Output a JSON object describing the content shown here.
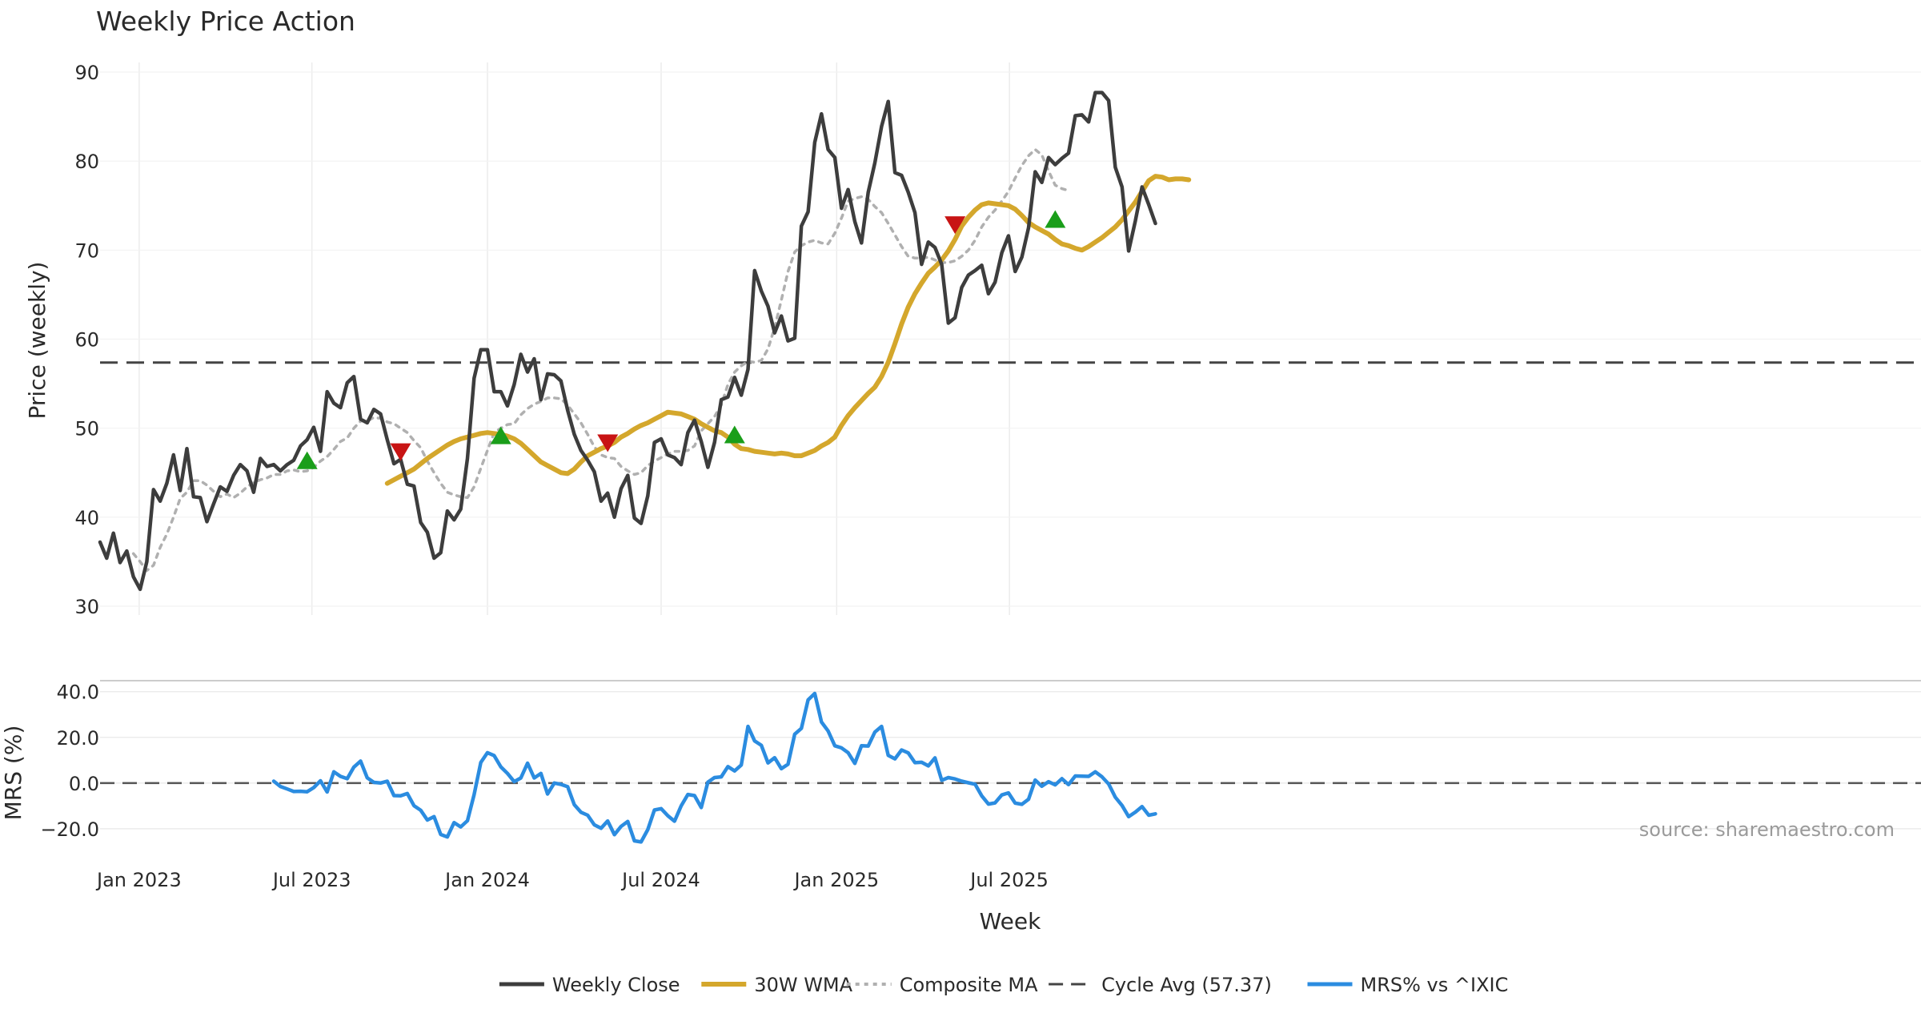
{
  "chart_data": {
    "type": "line",
    "title": "Weekly Price Action",
    "source_note": "source: sharemaestro.com",
    "xlabel": "Week",
    "x_start": "2022-11-21",
    "x_step_days": 7,
    "x_ticks": [
      {
        "date": "2023-01-01",
        "label": "Jan 2023"
      },
      {
        "date": "2023-07-01",
        "label": "Jul 2023"
      },
      {
        "date": "2024-01-01",
        "label": "Jan 2024"
      },
      {
        "date": "2024-07-01",
        "label": "Jul 2024"
      },
      {
        "date": "2025-01-01",
        "label": "Jan 2025"
      },
      {
        "date": "2025-07-01",
        "label": "Jul 2025"
      }
    ],
    "price_panel": {
      "ylabel": "Price (weekly)",
      "ylim": [
        30,
        90
      ],
      "yticks": [
        30,
        40,
        50,
        60,
        70,
        80,
        90
      ],
      "cycle_avg": 57.37,
      "series": [
        {
          "name": "Weekly Close",
          "color": "#3d3d3d",
          "start_index": 0,
          "values": [
            37.2,
            35.4,
            38.2,
            34.9,
            36.2,
            33.3,
            31.9,
            35.0,
            43.1,
            41.8,
            43.8,
            47.0,
            43.0,
            47.7,
            42.3,
            42.2,
            39.5,
            41.5,
            43.4,
            42.9,
            44.7,
            45.9,
            45.2,
            42.8,
            46.6,
            45.7,
            45.9,
            45.2,
            45.9,
            46.4,
            48.0,
            48.7,
            50.1,
            47.4,
            54.1,
            52.8,
            52.3,
            55.1,
            55.8,
            51.0,
            50.6,
            52.1,
            51.6,
            48.7,
            46.0,
            46.5,
            43.7,
            43.5,
            39.4,
            38.3,
            35.4,
            36.0,
            40.7,
            39.7,
            40.9,
            46.6,
            55.6,
            58.8,
            58.8,
            54.1,
            54.1,
            52.5,
            54.9,
            58.3,
            56.3,
            57.8,
            53.2,
            56.1,
            56.0,
            55.3,
            52.0,
            49.3,
            47.5,
            46.4,
            45.1,
            41.8,
            42.7,
            40.0,
            43.2,
            44.7,
            39.9,
            39.3,
            42.4,
            48.4,
            48.8,
            47.0,
            46.7,
            45.9,
            49.5,
            50.9,
            48.5,
            45.6,
            48.4,
            53.2,
            53.5,
            55.7,
            53.7,
            56.6,
            67.7,
            65.4,
            63.7,
            60.7,
            62.6,
            59.8,
            60.1,
            72.7,
            74.3,
            82.1,
            85.3,
            81.3,
            80.4,
            74.7,
            76.8,
            73.2,
            70.8,
            76.5,
            79.8,
            83.9,
            86.7,
            78.7,
            78.4,
            76.5,
            74.2,
            68.4,
            70.9,
            70.3,
            68.4,
            61.8,
            62.4,
            65.8,
            67.2,
            67.7,
            68.3,
            65.1,
            66.4,
            69.7,
            71.6,
            67.6,
            69.2,
            72.5,
            78.8,
            77.6,
            80.4,
            79.6,
            80.3,
            80.9,
            85.1,
            85.2,
            84.4,
            87.7,
            87.7,
            86.8,
            79.3,
            77.1,
            69.9,
            73.3,
            77.1,
            75.1,
            73.0
          ]
        },
        {
          "name": "30W WMA",
          "color": "#d4a72c",
          "start_index": 43,
          "values": [
            43.8,
            44.2,
            44.6,
            45.0,
            45.4,
            46.0,
            46.6,
            47.1,
            47.6,
            48.1,
            48.5,
            48.8,
            49.0,
            49.2,
            49.4,
            49.5,
            49.4,
            49.3,
            49.1,
            48.8,
            48.3,
            47.6,
            46.9,
            46.2,
            45.8,
            45.4,
            45.0,
            44.9,
            45.4,
            46.2,
            46.9,
            47.3,
            47.7,
            48.0,
            48.4,
            49.0,
            49.4,
            49.9,
            50.3,
            50.6,
            51.0,
            51.4,
            51.8,
            51.7,
            51.6,
            51.3,
            51.0,
            50.5,
            50.1,
            49.7,
            49.5,
            49.0,
            48.2,
            47.7,
            47.6,
            47.4,
            47.3,
            47.2,
            47.1,
            47.2,
            47.1,
            46.9,
            46.9,
            47.2,
            47.5,
            48.0,
            48.4,
            49.0,
            50.3,
            51.4,
            52.3,
            53.1,
            53.9,
            54.6,
            55.8,
            57.4,
            59.5,
            61.7,
            63.6,
            65.1,
            66.3,
            67.4,
            68.1,
            68.9,
            69.9,
            71.2,
            72.7,
            73.7,
            74.5,
            75.1,
            75.3,
            75.2,
            75.1,
            75.0,
            74.6,
            73.9,
            73.1,
            72.6,
            72.2,
            71.8,
            71.2,
            70.7,
            70.5,
            70.2,
            70.0,
            70.4,
            70.9,
            71.4,
            72.0,
            72.6,
            73.4,
            74.4,
            75.4,
            76.6,
            77.8,
            78.3,
            78.2,
            77.9,
            78.0,
            78.0,
            77.9
          ]
        },
        {
          "name": "Composite MA",
          "color": "#b0b0b0",
          "start_index": 5,
          "values": [
            35.9,
            35.0,
            34.0,
            34.6,
            36.6,
            38.1,
            40.0,
            42.1,
            42.8,
            44.1,
            44.1,
            43.6,
            42.9,
            42.3,
            42.6,
            42.2,
            42.7,
            43.4,
            43.9,
            44.2,
            44.4,
            44.8,
            44.8,
            45.2,
            45.3,
            45.1,
            45.2,
            45.6,
            46.3,
            46.8,
            47.6,
            48.5,
            48.9,
            50.0,
            50.8,
            50.8,
            51.2,
            51.1,
            50.7,
            50.5,
            50.0,
            49.5,
            48.6,
            47.8,
            46.3,
            45.0,
            43.8,
            42.8,
            42.5,
            42.3,
            42.2,
            43.4,
            45.5,
            47.5,
            49.5,
            50.0,
            50.4,
            50.5,
            51.5,
            52.2,
            52.7,
            53.0,
            53.4,
            53.4,
            53.3,
            52.6,
            51.6,
            50.6,
            49.3,
            47.9,
            47.0,
            46.7,
            46.6,
            45.7,
            45.2,
            44.8,
            45.0,
            45.8,
            46.3,
            46.7,
            47.1,
            47.4,
            47.4,
            47.5,
            48.0,
            49.7,
            50.5,
            51.3,
            52.6,
            54.9,
            56.3,
            57.0,
            57.5,
            57.4,
            57.6,
            58.9,
            61.3,
            64.4,
            67.6,
            69.8,
            70.5,
            70.9,
            71.1,
            70.8,
            70.7,
            71.9,
            73.6,
            75.5,
            75.8,
            76.0,
            75.7,
            74.9,
            74.2,
            73.0,
            71.7,
            70.4,
            69.3,
            69.1,
            69.1,
            69.2,
            68.9,
            68.6,
            68.6,
            68.8,
            69.3,
            70.0,
            71.1,
            72.6,
            73.7,
            74.5,
            75.5,
            76.6,
            78.1,
            79.5,
            80.6,
            81.3,
            80.7,
            78.9,
            77.3,
            76.9,
            76.7
          ]
        }
      ],
      "markers": [
        {
          "index": 31,
          "value": 46.3,
          "signal": "buy",
          "color": "#1a9e1a"
        },
        {
          "index": 45,
          "value": 47.4,
          "signal": "sell",
          "color": "#c81414"
        },
        {
          "index": 60,
          "value": 49.1,
          "signal": "buy",
          "color": "#1a9e1a"
        },
        {
          "index": 76,
          "value": 48.4,
          "signal": "sell",
          "color": "#c81414"
        },
        {
          "index": 95,
          "value": 49.2,
          "signal": "buy",
          "color": "#1a9e1a"
        },
        {
          "index": 128,
          "value": 72.9,
          "signal": "sell",
          "color": "#c81414"
        },
        {
          "index": 143,
          "value": 73.4,
          "signal": "buy",
          "color": "#1a9e1a"
        }
      ]
    },
    "mrs_panel": {
      "ylabel": "MRS (%)",
      "ylim": [
        -26,
        42
      ],
      "yticks": [
        -20,
        0,
        20,
        40
      ],
      "ytick_labels": [
        "−20.0",
        "0.0",
        "20.0",
        "40.0"
      ],
      "zero_line": 0,
      "series": [
        {
          "name": "MRS% vs ^IXIC",
          "color": "#2b8ce0",
          "start_index": 26,
          "values": [
            0.8,
            -1.5,
            -2.6,
            -3.7,
            -3.6,
            -3.8,
            -2.0,
            1.0,
            -3.9,
            4.9,
            2.9,
            1.9,
            7.0,
            9.6,
            2.3,
            0.3,
            0.0,
            0.8,
            -5.5,
            -5.6,
            -4.6,
            -9.9,
            -11.9,
            -16.2,
            -14.7,
            -22.5,
            -23.6,
            -17.3,
            -19.2,
            -16.5,
            -5.1,
            9.0,
            13.3,
            12.0,
            7.1,
            4.2,
            0.6,
            2.2,
            8.7,
            2.2,
            4.2,
            -4.8,
            0.0,
            -0.6,
            -1.6,
            -9.5,
            -12.8,
            -14.1,
            -18.3,
            -19.8,
            -16.6,
            -22.6,
            -19.0,
            -16.8,
            -25.3,
            -25.8,
            -20.4,
            -11.8,
            -11.2,
            -14.3,
            -16.7,
            -10.0,
            -5.0,
            -5.5,
            -10.7,
            0.4,
            2.4,
            2.7,
            7.2,
            5.3,
            7.9,
            24.8,
            18.4,
            16.5,
            8.8,
            11.1,
            6.3,
            8.2,
            21.4,
            23.9,
            36.4,
            39.2,
            26.7,
            22.8,
            16.3,
            15.4,
            13.3,
            8.6,
            16.3,
            16.2,
            22.3,
            24.8,
            12.1,
            10.6,
            14.5,
            13.2,
            8.9,
            9.1,
            7.5,
            11.0,
            1.2,
            2.4,
            1.8,
            0.8,
            0.1,
            -0.5,
            -5.6,
            -9.2,
            -8.7,
            -5.2,
            -4.3,
            -8.8,
            -9.3,
            -7.1,
            1.3,
            -1.4,
            0.6,
            -0.8,
            1.9,
            -0.7,
            3.1,
            3.0,
            2.9,
            4.9,
            2.7,
            -0.4,
            -6.2,
            -9.8,
            -14.7,
            -12.7,
            -10.3,
            -14.1,
            -13.5
          ]
        }
      ]
    },
    "legend": {
      "placement": "bottom-center",
      "entries": [
        {
          "label": "Weekly Close",
          "style": "solid",
          "color": "#3d3d3d"
        },
        {
          "label": "30W WMA",
          "style": "solid-thick",
          "color": "#d4a72c"
        },
        {
          "label": "Composite MA",
          "style": "dotted",
          "color": "#b0b0b0"
        },
        {
          "label": "Cycle Avg (57.37)",
          "style": "dashed",
          "color": "#444444"
        },
        {
          "label": "MRS% vs ^IXIC",
          "style": "solid",
          "color": "#2b8ce0"
        }
      ]
    }
  }
}
